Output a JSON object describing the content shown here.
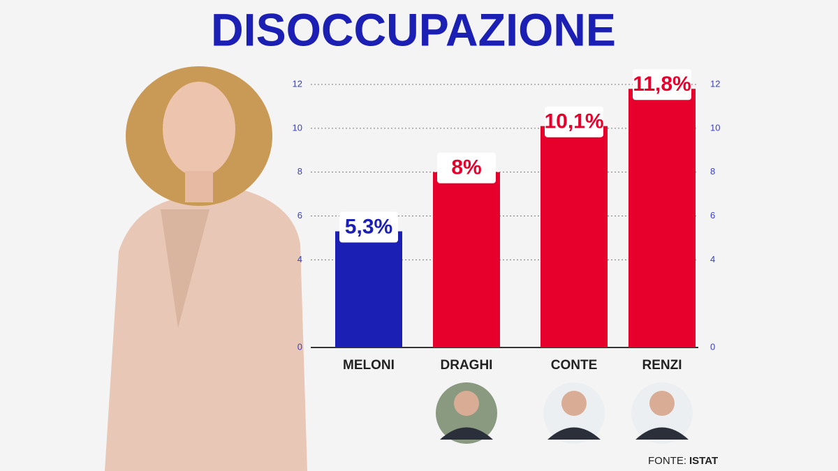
{
  "chart_data": {
    "type": "bar",
    "title": "DISOCCUPAZIONE",
    "categories": [
      "MELONI",
      "DRAGHI",
      "CONTE",
      "RENZI"
    ],
    "values": [
      5.3,
      8,
      10.1,
      11.8
    ],
    "value_labels": [
      "5,3%",
      "8%",
      "10,1%",
      "11,8%"
    ],
    "colors": [
      "#1b1fb3",
      "#e8002d",
      "#e8002d",
      "#e8002d"
    ],
    "ylim": [
      0,
      12
    ],
    "yticks": [
      0,
      4,
      6,
      8,
      10,
      12
    ],
    "y2lim": [
      0,
      12
    ],
    "y2ticks": [
      0,
      4,
      6,
      8,
      10,
      12
    ],
    "grid": true,
    "source_label": "FONTE:",
    "source": "ISTAT"
  }
}
